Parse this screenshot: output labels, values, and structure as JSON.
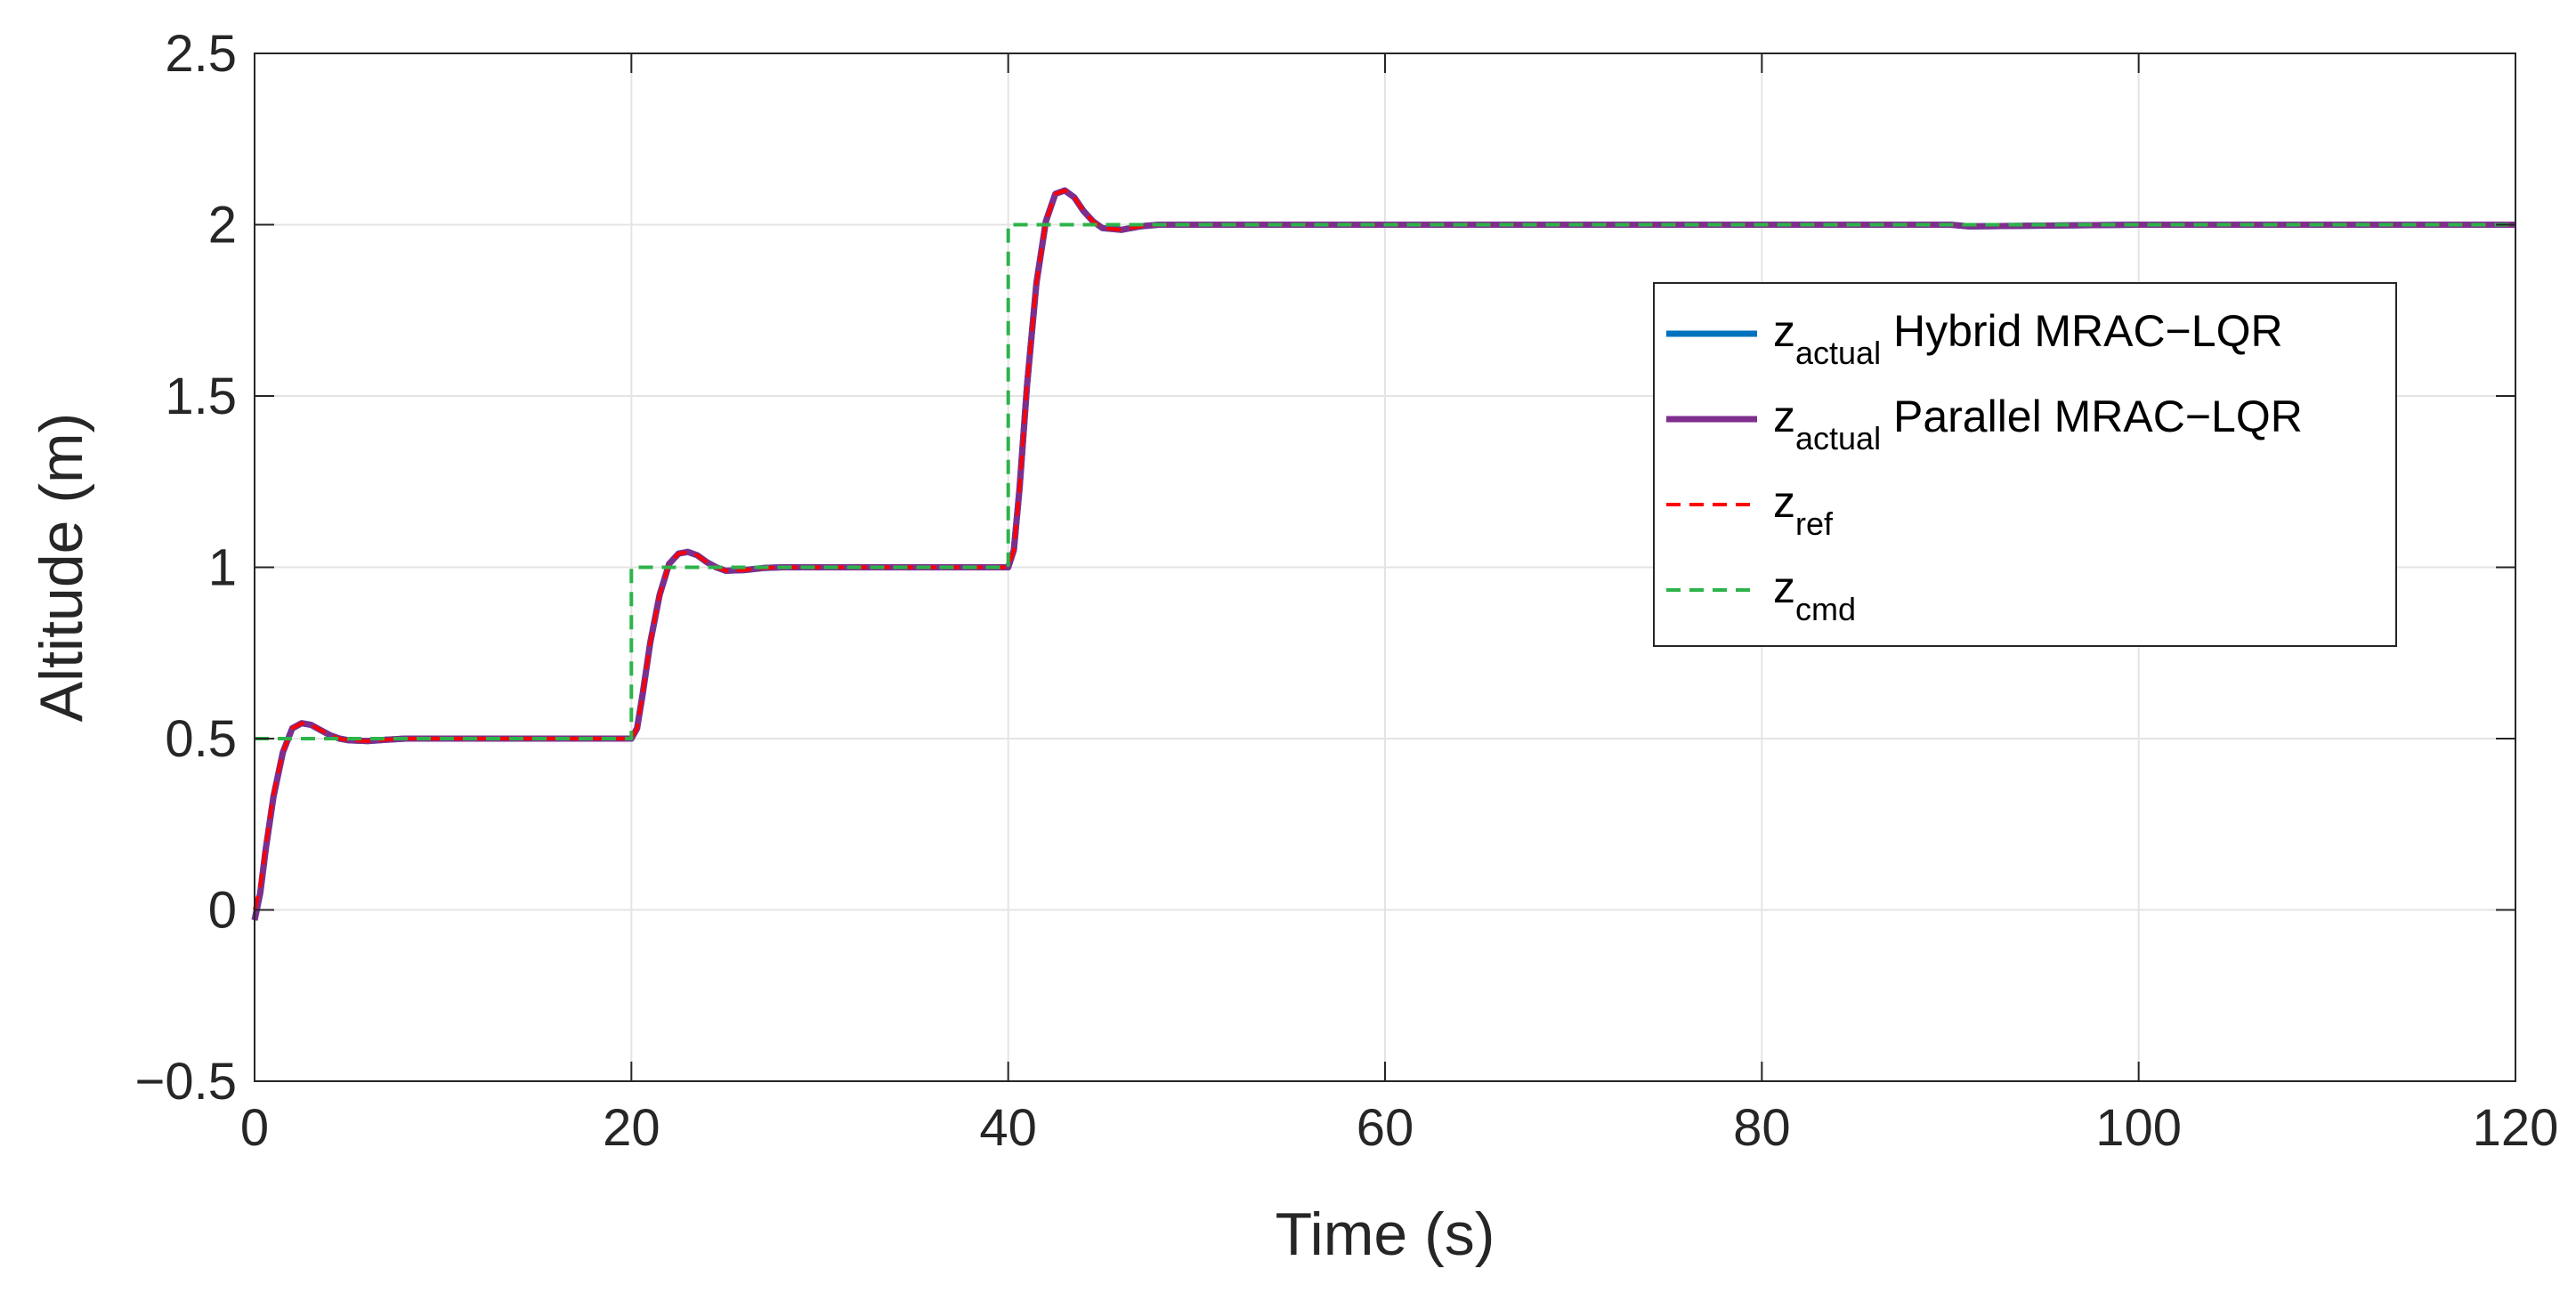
{
  "chart_data": {
    "type": "line",
    "xlabel": "Time (s)",
    "ylabel": "Altitude (m)",
    "xlim": [
      0,
      120
    ],
    "ylim": [
      -0.5,
      2.5
    ],
    "xticks": [
      0,
      20,
      40,
      60,
      80,
      100,
      120
    ],
    "yticks": [
      -0.5,
      0,
      0.5,
      1,
      1.5,
      2,
      2.5
    ],
    "xtick_labels": [
      "0",
      "20",
      "40",
      "60",
      "80",
      "100",
      "120"
    ],
    "ytick_labels": [
      "−0.5",
      "0",
      "0.5",
      "1",
      "1.5",
      "2",
      "2.5"
    ],
    "grid": true,
    "legend_position": "right",
    "series": [
      {
        "name": "z_actual Hybrid MRAC−LQR",
        "legend_main": "z",
        "legend_sub": "actual",
        "legend_rest": " Hybrid MRAC−LQR",
        "color": "#0072BD",
        "style": "solid",
        "x": [
          0,
          0.3,
          0.6,
          1.0,
          1.5,
          2.0,
          2.5,
          3.0,
          3.5,
          4.0,
          4.5,
          5.0,
          6.0,
          7.0,
          8.0,
          10.0,
          20.0,
          20.3,
          20.6,
          21.0,
          21.5,
          22.0,
          22.5,
          23.0,
          23.5,
          24.0,
          24.5,
          25.0,
          26.0,
          27.0,
          28.0,
          30.0,
          40.0,
          40.3,
          40.6,
          41.0,
          41.5,
          42.0,
          42.5,
          43.0,
          43.5,
          44.0,
          44.5,
          45.0,
          46.0,
          47.0,
          48.0,
          50.0,
          60.0,
          80.0,
          90.0,
          91.0,
          100.0,
          120.0
        ],
        "y": [
          -0.03,
          0.05,
          0.18,
          0.33,
          0.46,
          0.53,
          0.545,
          0.54,
          0.525,
          0.51,
          0.5,
          0.495,
          0.493,
          0.497,
          0.5,
          0.5,
          0.5,
          0.53,
          0.63,
          0.78,
          0.92,
          1.01,
          1.04,
          1.045,
          1.035,
          1.015,
          1.0,
          0.99,
          0.992,
          0.998,
          1.0,
          1.0,
          1.0,
          1.05,
          1.23,
          1.53,
          1.83,
          2.01,
          2.09,
          2.1,
          2.08,
          2.04,
          2.01,
          1.99,
          1.985,
          1.995,
          2.0,
          2.0,
          2.0,
          2.0,
          2.0,
          1.995,
          2.0,
          2.0
        ]
      },
      {
        "name": "z_actual Parallel MRAC−LQR",
        "legend_main": "z",
        "legend_sub": "actual",
        "legend_rest": " Parallel MRAC−LQR",
        "color": "#7E2F8E",
        "style": "solid",
        "x": [
          0,
          0.3,
          0.6,
          1.0,
          1.5,
          2.0,
          2.5,
          3.0,
          3.5,
          4.0,
          4.5,
          5.0,
          6.0,
          7.0,
          8.0,
          10.0,
          20.0,
          20.3,
          20.6,
          21.0,
          21.5,
          22.0,
          22.5,
          23.0,
          23.5,
          24.0,
          24.5,
          25.0,
          26.0,
          27.0,
          28.0,
          30.0,
          40.0,
          40.3,
          40.6,
          41.0,
          41.5,
          42.0,
          42.5,
          43.0,
          43.5,
          44.0,
          44.5,
          45.0,
          46.0,
          47.0,
          48.0,
          50.0,
          60.0,
          80.0,
          90.0,
          91.0,
          100.0,
          120.0
        ],
        "y": [
          -0.03,
          0.05,
          0.18,
          0.33,
          0.46,
          0.53,
          0.545,
          0.54,
          0.525,
          0.51,
          0.5,
          0.495,
          0.493,
          0.497,
          0.5,
          0.5,
          0.5,
          0.53,
          0.63,
          0.78,
          0.92,
          1.01,
          1.04,
          1.045,
          1.035,
          1.015,
          1.0,
          0.99,
          0.992,
          0.998,
          1.0,
          1.0,
          1.0,
          1.05,
          1.23,
          1.53,
          1.83,
          2.01,
          2.09,
          2.1,
          2.08,
          2.04,
          2.01,
          1.99,
          1.985,
          1.995,
          2.0,
          2.0,
          2.0,
          2.0,
          2.0,
          1.995,
          2.0,
          2.0
        ]
      },
      {
        "name": "z_ref",
        "legend_main": "z",
        "legend_sub": "ref",
        "legend_rest": "",
        "color": "#FF0000",
        "style": "dashed",
        "x": [
          0,
          0.3,
          0.6,
          1.0,
          1.5,
          2.0,
          2.5,
          3.0,
          3.5,
          4.0,
          4.5,
          5.0,
          6.0,
          7.0,
          8.0,
          10.0,
          20.0,
          20.3,
          20.6,
          21.0,
          21.5,
          22.0,
          22.5,
          23.0,
          23.5,
          24.0,
          24.5,
          25.0,
          26.0,
          27.0,
          28.0,
          30.0,
          40.0,
          40.3,
          40.6,
          41.0,
          41.5,
          42.0,
          42.5,
          43.0,
          43.5,
          44.0,
          44.5,
          45.0,
          46.0,
          47.0,
          48.0,
          50.0,
          60.0,
          80.0,
          100.0,
          120.0
        ],
        "y": [
          0.0,
          0.07,
          0.19,
          0.34,
          0.46,
          0.53,
          0.545,
          0.54,
          0.525,
          0.51,
          0.5,
          0.495,
          0.493,
          0.497,
          0.5,
          0.5,
          0.5,
          0.53,
          0.63,
          0.78,
          0.92,
          1.01,
          1.04,
          1.045,
          1.035,
          1.015,
          1.0,
          0.99,
          0.992,
          0.998,
          1.0,
          1.0,
          1.0,
          1.05,
          1.23,
          1.53,
          1.83,
          2.01,
          2.09,
          2.1,
          2.08,
          2.04,
          2.01,
          1.99,
          1.985,
          1.995,
          2.0,
          2.0,
          2.0,
          2.0,
          2.0,
          2.0
        ]
      },
      {
        "name": "z_cmd",
        "legend_main": "z",
        "legend_sub": "cmd",
        "legend_rest": "",
        "color": "#2DB34A",
        "style": "dashed",
        "x": [
          0,
          20,
          20,
          40,
          40,
          120
        ],
        "y": [
          0.5,
          0.5,
          1.0,
          1.0,
          2.0,
          2.0
        ]
      }
    ]
  }
}
